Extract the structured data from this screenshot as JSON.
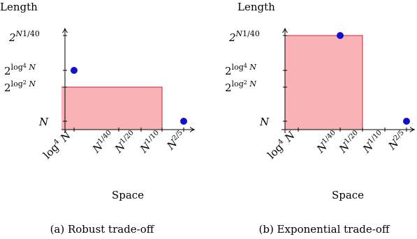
{
  "chart_data": [
    {
      "type": "scatter",
      "caption": "(a) Robust trade-off",
      "xlabel": "Space",
      "ylabel": "Length",
      "x_ticks": [
        "log⁴ N",
        "N^{1/40}",
        "N^{1/20}",
        "N^{1/10}",
        "N^{2/5}"
      ],
      "y_ticks": [
        "N",
        "2^{log² N}",
        "2^{log⁴ N}",
        "2^{N^{1/40}}"
      ],
      "region": {
        "x_from": "start",
        "x_to": "N^{1/10}",
        "y_from": "0",
        "y_to": "2^{log² N}",
        "color": "#f9b3b6",
        "edge": "#d0202a"
      },
      "points": [
        {
          "x": "log⁴ N",
          "y": "2^{log⁴ N}"
        },
        {
          "x": "N^{2/5}",
          "y": "N"
        }
      ],
      "point_color": "#1010d0"
    },
    {
      "type": "scatter",
      "caption": "(b) Exponential trade-off",
      "xlabel": "Space",
      "ylabel": "Length",
      "x_ticks": [
        "log⁴ N",
        "N^{1/40}",
        "N^{1/20}",
        "N^{1/10}",
        "N^{2/5}"
      ],
      "y_ticks": [
        "N",
        "2^{log² N}",
        "2^{log⁴ N}",
        "2^{N^{1/40}}"
      ],
      "region": {
        "x_from": "start",
        "x_to": "N^{1/20}",
        "y_from": "0",
        "y_to": "2^{N^{1/40}}",
        "color": "#f9b3b6",
        "edge": "#d0202a"
      },
      "points": [
        {
          "x": "N^{1/40}",
          "y": "2^{N^{1/40}}"
        },
        {
          "x": "N^{2/5}",
          "y": "N"
        }
      ],
      "point_color": "#1010d0"
    }
  ]
}
